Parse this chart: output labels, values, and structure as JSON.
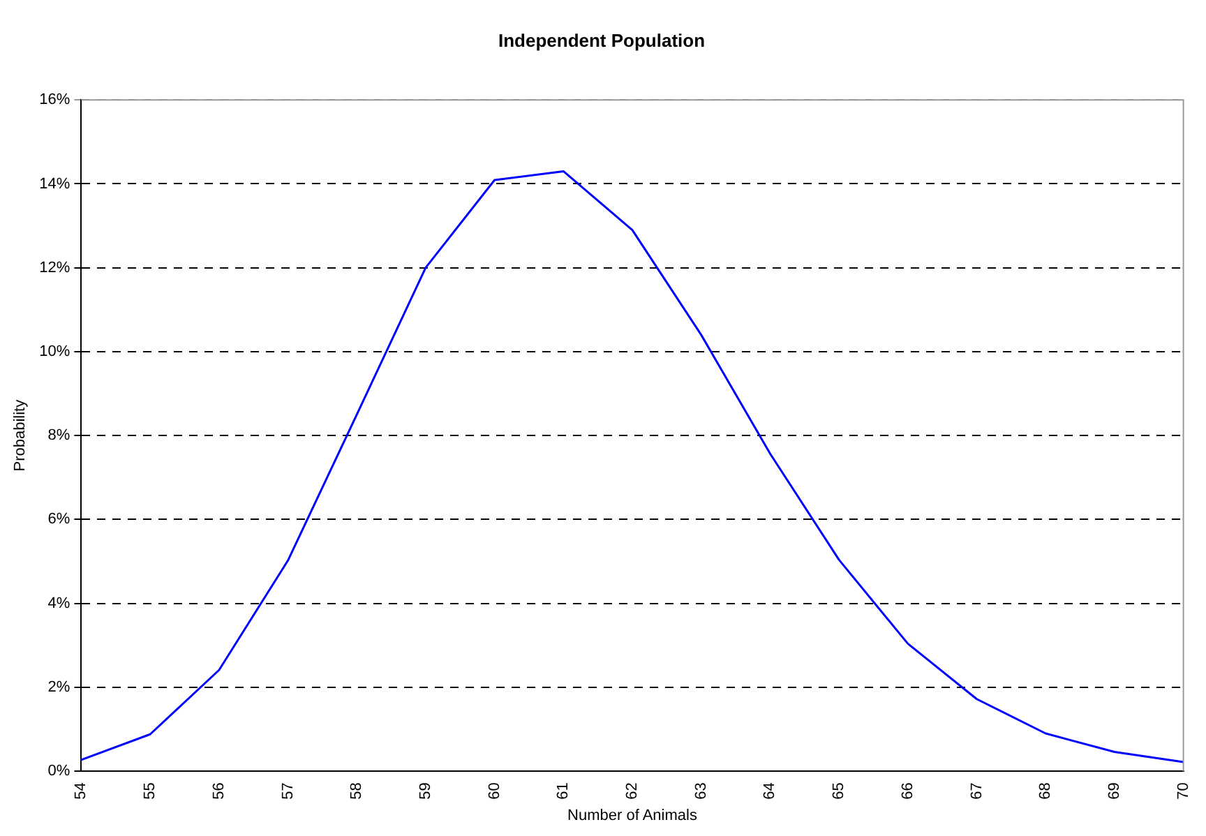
{
  "chart_data": {
    "type": "line",
    "title": "Independent Population",
    "xlabel": "Number of Animals",
    "ylabel": "Probability",
    "categories": [
      "54",
      "55",
      "56",
      "57",
      "58",
      "59",
      "60",
      "61",
      "62",
      "63",
      "64",
      "65",
      "66",
      "67",
      "68",
      "69",
      "70"
    ],
    "series": [
      {
        "color": "#0000ff",
        "values": [
          0.27,
          0.88,
          2.41,
          5.02,
          8.5,
          12.0,
          14.09,
          14.3,
          12.9,
          10.4,
          7.57,
          5.04,
          3.04,
          1.72,
          0.9,
          0.46,
          0.22
        ]
      }
    ],
    "ylim": [
      0,
      16
    ],
    "yticks": [
      {
        "value": 0,
        "label": "0%"
      },
      {
        "value": 2,
        "label": "2%"
      },
      {
        "value": 4,
        "label": "4%"
      },
      {
        "value": 6,
        "label": "6%"
      },
      {
        "value": 8,
        "label": "8%"
      },
      {
        "value": 10,
        "label": "10%"
      },
      {
        "value": 12,
        "label": "12%"
      },
      {
        "value": 14,
        "label": "14%"
      },
      {
        "value": 16,
        "label": "16%"
      }
    ],
    "grid": "y",
    "legend": false,
    "marker": "none",
    "line_style": "solid"
  }
}
